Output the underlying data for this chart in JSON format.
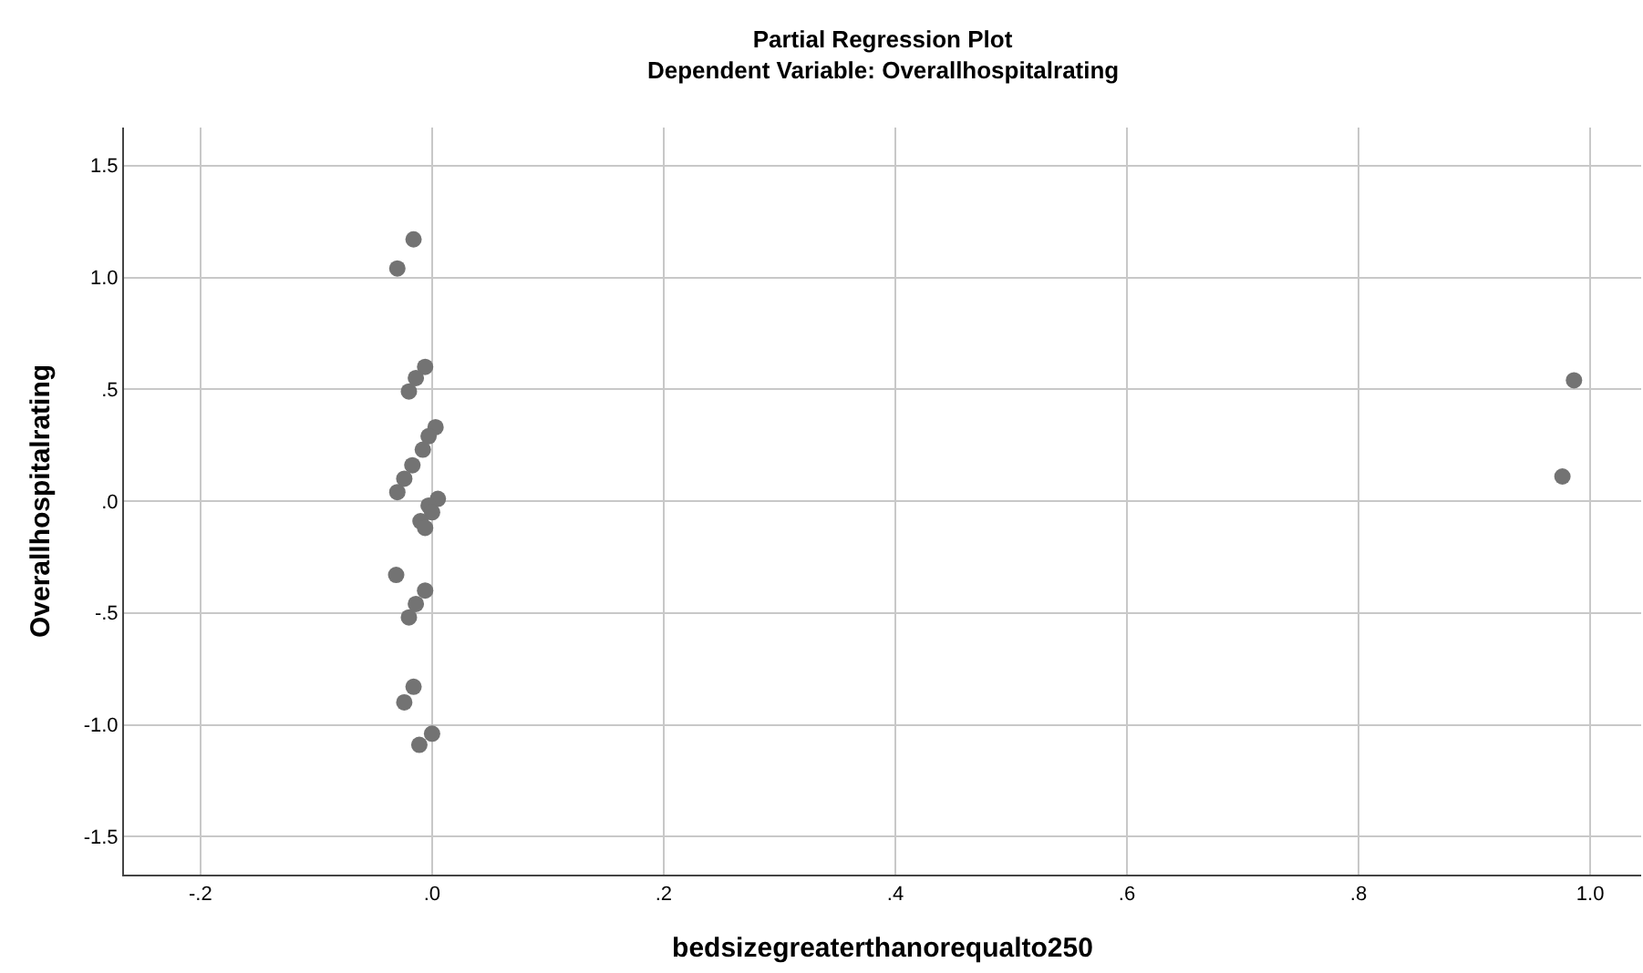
{
  "chart_data": {
    "type": "scatter",
    "title": "Partial Regression Plot",
    "subtitle": "Dependent Variable: Overallhospitalrating",
    "xlabel": "bedsizegreaterthanorequalto250",
    "ylabel": "Overallhospitalrating",
    "x": [
      -0.016,
      -0.03,
      -0.006,
      -0.014,
      -0.02,
      0.003,
      -0.003,
      -0.008,
      -0.017,
      -0.024,
      -0.03,
      0.005,
      -0.003,
      0,
      -0.01,
      -0.006,
      -0.031,
      -0.006,
      -0.014,
      -0.02,
      -0.016,
      -0.024,
      0,
      -0.011,
      0.986,
      0.976
    ],
    "series": [
      {
        "color": "#737373",
        "values": [
          1.17,
          1.04,
          0.6,
          0.55,
          0.49,
          0.33,
          0.29,
          0.23,
          0.16,
          0.1,
          0.04,
          0.01,
          -0.02,
          -0.05,
          -0.09,
          -0.12,
          -0.33,
          -0.4,
          -0.46,
          -0.52,
          -0.83,
          -0.9,
          -1.04,
          -1.09,
          0.54,
          0.11
        ]
      }
    ],
    "xlim": [
      -0.266,
      1.044
    ],
    "ylim": [
      -1.67,
      1.67
    ],
    "xticks": [
      {
        "value": -0.2,
        "label": "-.2"
      },
      {
        "value": 0,
        "label": ".0"
      },
      {
        "value": 0.2,
        "label": ".2"
      },
      {
        "value": 0.4,
        "label": ".4"
      },
      {
        "value": 0.6,
        "label": ".6"
      },
      {
        "value": 0.8,
        "label": ".8"
      },
      {
        "value": 1,
        "label": "1.0"
      }
    ],
    "yticks": [
      {
        "value": -1.5,
        "label": "-1.5"
      },
      {
        "value": -1,
        "label": "-1.0"
      },
      {
        "value": -0.5,
        "label": "-.5"
      },
      {
        "value": 0,
        "label": ".0"
      },
      {
        "value": 0.5,
        "label": ".5"
      },
      {
        "value": 1,
        "label": "1.0"
      },
      {
        "value": 1.5,
        "label": "1.5"
      }
    ],
    "grid": true,
    "marker": "circle"
  }
}
